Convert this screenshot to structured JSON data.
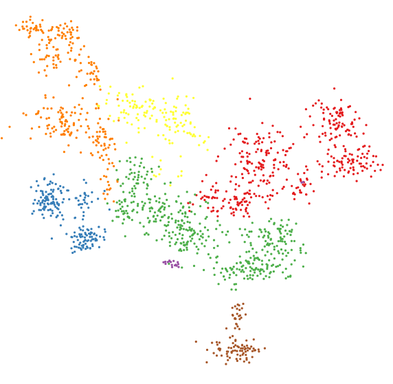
{
  "chart_data": {
    "type": "scatter",
    "title": "",
    "xlabel": "",
    "ylabel": "",
    "axes_visible": false,
    "grid": false,
    "legend": "none",
    "marker_size": "small",
    "series": [
      {
        "id": "orange",
        "color": "#ff7f00",
        "count": 300,
        "clusters": [
          {
            "cx": 48,
            "cy": 40,
            "sx": 12,
            "sy": 6,
            "n": 30
          },
          {
            "cx": 95,
            "cy": 45,
            "sx": 12,
            "sy": 7,
            "n": 35
          },
          {
            "cx": 80,
            "cy": 75,
            "sx": 20,
            "sy": 14,
            "n": 50
          },
          {
            "cx": 128,
            "cy": 108,
            "sx": 12,
            "sy": 15,
            "n": 30
          },
          {
            "cx": 95,
            "cy": 180,
            "sx": 28,
            "sy": 18,
            "n": 100
          },
          {
            "cx": 150,
            "cy": 205,
            "sx": 10,
            "sy": 14,
            "n": 35
          },
          {
            "cx": 158,
            "cy": 262,
            "sx": 8,
            "sy": 14,
            "n": 20
          }
        ]
      },
      {
        "id": "yellow",
        "color": "#ffff33",
        "count": 150,
        "clusters": [
          {
            "cx": 195,
            "cy": 155,
            "sx": 25,
            "sy": 16,
            "n": 70
          },
          {
            "cx": 255,
            "cy": 170,
            "sx": 18,
            "sy": 18,
            "n": 60
          },
          {
            "cx": 240,
            "cy": 240,
            "sx": 25,
            "sy": 12,
            "n": 12
          },
          {
            "cx": 300,
            "cy": 205,
            "sx": 10,
            "sy": 10,
            "n": 8
          }
        ]
      },
      {
        "id": "red",
        "color": "#e41a1c",
        "count": 420,
        "clusters": [
          {
            "cx": 380,
            "cy": 232,
            "sx": 28,
            "sy": 22,
            "n": 130
          },
          {
            "cx": 350,
            "cy": 290,
            "sx": 25,
            "sy": 15,
            "n": 70
          },
          {
            "cx": 490,
            "cy": 180,
            "sx": 18,
            "sy": 18,
            "n": 90
          },
          {
            "cx": 505,
            "cy": 235,
            "sx": 22,
            "sy": 12,
            "n": 80
          },
          {
            "cx": 300,
            "cy": 290,
            "sx": 12,
            "sy": 12,
            "n": 25
          },
          {
            "cx": 440,
            "cy": 270,
            "sx": 12,
            "sy": 12,
            "n": 25
          }
        ]
      },
      {
        "id": "blue",
        "color": "#377eb8",
        "count": 210,
        "clusters": [
          {
            "cx": 72,
            "cy": 290,
            "sx": 12,
            "sy": 14,
            "n": 100
          },
          {
            "cx": 120,
            "cy": 290,
            "sx": 15,
            "sy": 12,
            "n": 30
          },
          {
            "cx": 128,
            "cy": 345,
            "sx": 14,
            "sy": 10,
            "n": 80
          }
        ]
      },
      {
        "id": "green",
        "color": "#4daf4a",
        "count": 470,
        "clusters": [
          {
            "cx": 200,
            "cy": 255,
            "sx": 12,
            "sy": 12,
            "n": 40
          },
          {
            "cx": 185,
            "cy": 300,
            "sx": 12,
            "sy": 18,
            "n": 50
          },
          {
            "cx": 240,
            "cy": 305,
            "sx": 22,
            "sy": 16,
            "n": 80
          },
          {
            "cx": 275,
            "cy": 340,
            "sx": 25,
            "sy": 18,
            "n": 100
          },
          {
            "cx": 390,
            "cy": 355,
            "sx": 25,
            "sy": 15,
            "n": 80
          },
          {
            "cx": 370,
            "cy": 390,
            "sx": 25,
            "sy": 10,
            "n": 80
          },
          {
            "cx": 330,
            "cy": 400,
            "sx": 10,
            "sy": 10,
            "n": 20
          },
          {
            "cx": 410,
            "cy": 330,
            "sx": 8,
            "sy": 12,
            "n": 20
          }
        ]
      },
      {
        "id": "purple",
        "color": "#984ea3",
        "count": 18,
        "clusters": [
          {
            "cx": 250,
            "cy": 382,
            "sx": 5,
            "sy": 3,
            "n": 16
          },
          {
            "cx": 440,
            "cy": 265,
            "sx": 2,
            "sy": 2,
            "n": 2
          }
        ]
      },
      {
        "id": "brown",
        "color": "#a65628",
        "count": 100,
        "clusters": [
          {
            "cx": 345,
            "cy": 458,
            "sx": 6,
            "sy": 12,
            "n": 25
          },
          {
            "cx": 345,
            "cy": 510,
            "sx": 18,
            "sy": 9,
            "n": 75
          }
        ]
      }
    ]
  }
}
